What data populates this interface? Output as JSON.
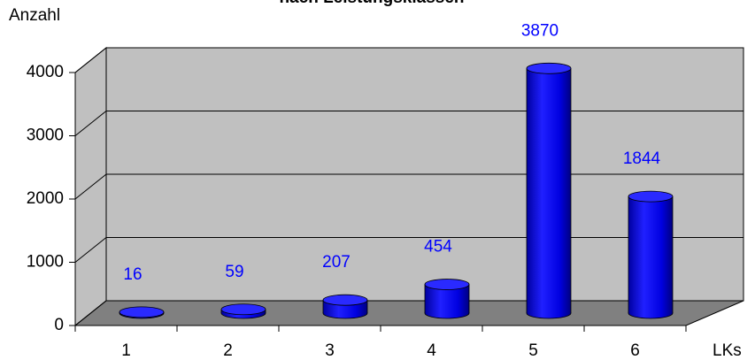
{
  "chart_data": {
    "type": "bar3d",
    "title": "nach Leistungsklassen",
    "y_label": "Anzahl",
    "x_label": "LKs",
    "categories": [
      "1",
      "2",
      "3",
      "4",
      "5",
      "6"
    ],
    "values": [
      16,
      59,
      207,
      454,
      3870,
      1844
    ],
    "color": "#0000ff",
    "ylim": [
      0,
      4000
    ],
    "yticks": [
      0,
      1000,
      2000,
      3000,
      4000
    ],
    "grid": true
  }
}
